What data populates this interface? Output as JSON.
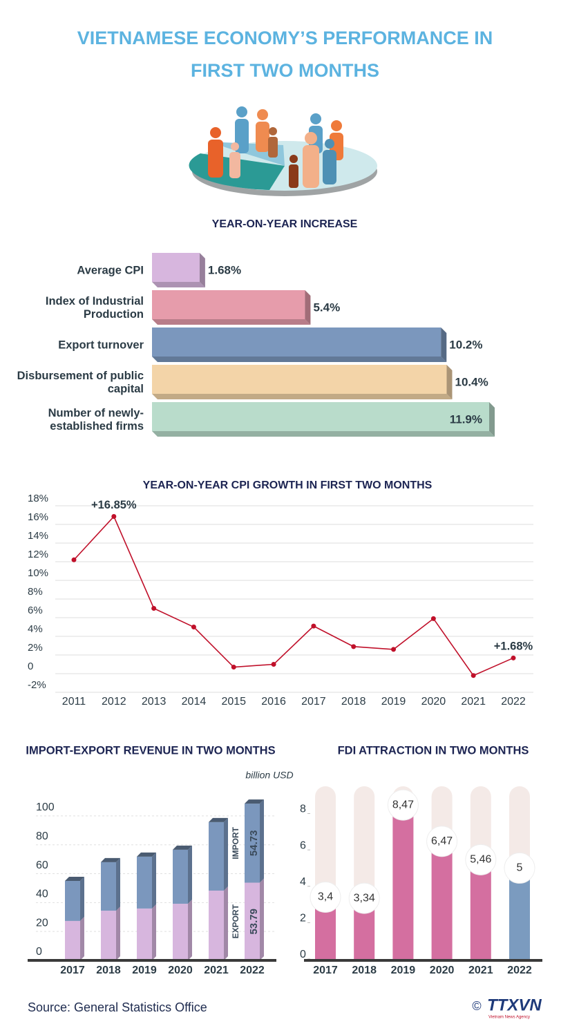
{
  "header": {
    "title": "VIETNAMESE ECONOMY’S PERFORMANCE IN FIRST TWO MONTHS"
  },
  "chart_data": [
    {
      "type": "hbar",
      "title": "YEAR-ON-YEAR INCREASE",
      "categories": [
        "Average CPI",
        "Index of Industrial Production",
        "Export turnover",
        "Disbursement of public capital",
        "Number of newly-established firms"
      ],
      "values": [
        1.68,
        5.4,
        10.2,
        10.4,
        11.9
      ],
      "value_labels": [
        "1.68%",
        "5.4%",
        "10.2%",
        "10.4%",
        "11.9%"
      ],
      "colors": [
        "#d7b6de",
        "#e69cab",
        "#7b97bd",
        "#f3d4a8",
        "#b9dccb"
      ]
    },
    {
      "type": "line",
      "title": "YEAR-ON-YEAR CPI GROWTH IN FIRST TWO MONTHS",
      "categories": [
        "2011",
        "2012",
        "2013",
        "2014",
        "2015",
        "2016",
        "2017",
        "2018",
        "2019",
        "2020",
        "2021",
        "2022"
      ],
      "values": [
        12.2,
        16.85,
        7.0,
        5.0,
        0.7,
        1.0,
        5.1,
        2.9,
        2.6,
        5.9,
        -0.2,
        1.68
      ],
      "value_labels": [
        null,
        "+16.85%",
        null,
        null,
        null,
        null,
        null,
        null,
        null,
        null,
        null,
        "+1.68%"
      ],
      "color": "#c0102a",
      "ylim": [
        -2,
        18
      ],
      "yticks": [
        {
          "value": -2,
          "label": "-2%"
        },
        0,
        {
          "value": 2,
          "label": "2%"
        },
        {
          "value": 4,
          "label": "4%"
        },
        {
          "value": 6,
          "label": "6%"
        },
        {
          "value": 8,
          "label": "8%"
        },
        {
          "value": 10,
          "label": "10%"
        },
        {
          "value": 12,
          "label": "12%"
        },
        {
          "value": 14,
          "label": "14%"
        },
        {
          "value": 16,
          "label": "16%"
        },
        {
          "value": 18,
          "label": "18%"
        }
      ],
      "grid": true
    },
    {
      "type": "stacked_bar",
      "title": "IMPORT-EXPORT REVENUE IN TWO MONTHS",
      "unit": "billion USD",
      "categories": [
        "2017",
        "2018",
        "2019",
        "2020",
        "2021",
        "2022"
      ],
      "series": [
        {
          "name": "EXPORT",
          "color": "#d7b6de",
          "values": [
            27.3,
            34.4,
            35.9,
            39.2,
            48.3,
            53.79
          ],
          "value_labels": [
            null,
            null,
            null,
            null,
            null,
            "53.79"
          ]
        },
        {
          "name": "IMPORT",
          "color": "#7b97bd",
          "values": [
            27.7,
            33.6,
            35.9,
            37.4,
            47.4,
            54.73
          ],
          "value_labels": [
            null,
            null,
            null,
            null,
            null,
            "54.73"
          ]
        }
      ],
      "ylim": [
        0,
        110
      ],
      "yticks": [
        0,
        20,
        40,
        60,
        80,
        100
      ]
    },
    {
      "type": "bar",
      "title": "FDI ATTRACTION IN TWO MONTHS",
      "categories": [
        "2017",
        "2018",
        "2019",
        "2020",
        "2021",
        "2022"
      ],
      "values": [
        3.4,
        3.34,
        8.47,
        6.47,
        5.46,
        5
      ],
      "value_labels": [
        "3,4",
        "3,34",
        "8,47",
        "6,47",
        "5,46",
        "5"
      ],
      "colors": [
        "#d46fa0",
        "#d46fa0",
        "#d46fa0",
        "#d46fa0",
        "#d46fa0",
        "#7b9bbf"
      ],
      "ylim": [
        0,
        9.5
      ],
      "yticks": [
        0,
        2,
        4,
        6,
        8
      ]
    }
  ],
  "footer": {
    "source": "Source: General Statistics Office",
    "copyright": "©",
    "logo": "TTXVN",
    "logo_subtitle": "Vietnam News Agency"
  }
}
